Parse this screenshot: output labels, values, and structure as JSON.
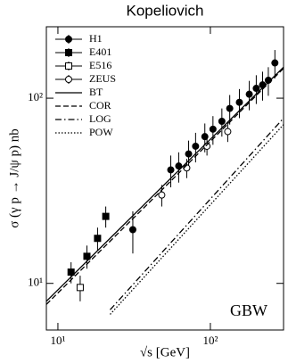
{
  "chart_data": {
    "type": "scatter",
    "title": "Kopeliovich",
    "x_label": "√s [GeV]",
    "y_label": "σ (γ p → J/ψ p) nb",
    "annotation": "GBW",
    "log_x": true,
    "log_y": true,
    "xlim": [
      8.4,
      302
    ],
    "ylim": [
      5.6,
      243
    ],
    "xticks": [
      {
        "value": 10,
        "label": "10¹"
      },
      {
        "value": 100,
        "label": "10²"
      }
    ],
    "yticks": [
      {
        "value": 10,
        "label": "10¹"
      },
      {
        "value": 100,
        "label": "10²"
      }
    ],
    "legend": "top-left",
    "series": [
      {
        "name": "H1",
        "kind": "points",
        "marker": "circle",
        "filled": true,
        "color": "#000000",
        "x": [
          31,
          55,
          62,
          72,
          80,
          92,
          104,
          119,
          134,
          155,
          180,
          200,
          220,
          240,
          265
        ],
        "values": [
          19.5,
          41,
          43,
          50,
          55,
          62,
          68,
          75,
          88,
          95,
          105,
          113,
          118,
          125,
          155
        ],
        "errors": [
          5,
          8,
          8,
          9,
          10,
          11,
          12,
          13,
          16,
          17,
          19,
          20,
          21,
          22,
          27
        ]
      },
      {
        "name": "E401",
        "kind": "points",
        "marker": "square",
        "filled": true,
        "color": "#000000",
        "x": [
          12.2,
          15.5,
          18.2,
          20.6
        ],
        "values": [
          11.5,
          14,
          17.5,
          23
        ],
        "errors": [
          1.5,
          2,
          2.5,
          3
        ]
      },
      {
        "name": "E516",
        "kind": "points",
        "marker": "square",
        "filled": false,
        "color": "#000000",
        "x": [
          14
        ],
        "values": [
          9.5
        ],
        "errors": [
          1.5
        ]
      },
      {
        "name": "ZEUS",
        "kind": "points",
        "marker": "circle",
        "filled": false,
        "color": "#000000",
        "x": [
          48,
          70,
          95,
          130
        ],
        "values": [
          30,
          42,
          55,
          66
        ],
        "errors": [
          4,
          5,
          6,
          8
        ]
      },
      {
        "name": "BT",
        "kind": "line",
        "style": "solid",
        "color": "#000000",
        "x": [
          8.4,
          50,
          302
        ],
        "values": [
          8.0,
          34.2,
          147
        ]
      },
      {
        "name": "COR",
        "kind": "line",
        "style": "dashed",
        "color": "#000000",
        "x": [
          8.4,
          50,
          302
        ],
        "values": [
          7.7,
          33,
          145
        ]
      },
      {
        "name": "LOG",
        "kind": "line",
        "style": "dashdot",
        "color": "#000000",
        "x": [
          22,
          302
        ],
        "values": [
          7.2,
          78
        ]
      },
      {
        "name": "POW",
        "kind": "line",
        "style": "dotted",
        "color": "#000000",
        "x": [
          22,
          302
        ],
        "values": [
          6.8,
          72
        ]
      }
    ]
  }
}
